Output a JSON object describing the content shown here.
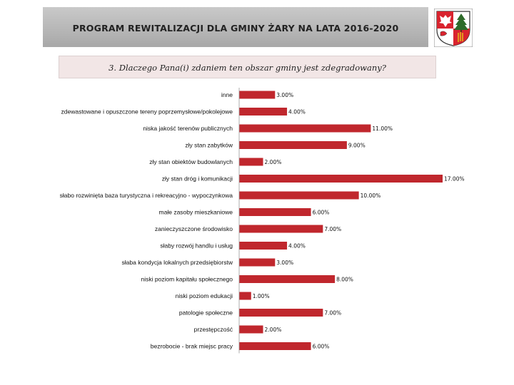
{
  "header": {
    "title": "PROGRAM REWITALIZACJI DLA GMINY ŻARY NA LATA 2016-2020"
  },
  "question": "3. Dlaczego Pana(i) zdaniem ten obszar gminy jest zdegradowany?",
  "colors": {
    "bar": "#c0272d",
    "header_bg": "#b5b5b5",
    "question_bg": "#f2e6e6"
  },
  "chart_data": {
    "type": "bar",
    "orientation": "horizontal",
    "categories": [
      "inne",
      "zdewastowane i opuszczone tereny poprzemysłowe/pokolejowe",
      "niska jakość terenów publicznych",
      "zły stan zabytków",
      "zły stan obiektów budowlanych",
      "zły stan dróg i komunikacji",
      "słabo rozwinięta baza turystyczna i rekreacyjno - wypoczynkowa",
      "małe zasoby mieszkaniowe",
      "zanieczyszczone środowisko",
      "słaby rozwój handlu i usług",
      "słaba kondycja lokalnych przedsiębiorstw",
      "niski poziom kapitału społecznego",
      "niski poziom edukacji",
      "patologie społeczne",
      "przestępczość",
      "bezrobocie - brak miejsc pracy"
    ],
    "values": [
      3,
      4,
      11,
      9,
      2,
      17,
      10,
      6,
      7,
      4,
      3,
      8,
      1,
      7,
      2,
      6
    ],
    "value_labels": [
      "3.00%",
      "4.00%",
      "11.00%",
      "9.00%",
      "2.00%",
      "17.00%",
      "10.00%",
      "6.00%",
      "7.00%",
      "4.00%",
      "3.00%",
      "8.00%",
      "1.00%",
      "7.00%",
      "2.00%",
      "6.00%"
    ],
    "xlim": [
      0,
      17
    ],
    "unit": "%",
    "grid": false,
    "legend": "none"
  }
}
